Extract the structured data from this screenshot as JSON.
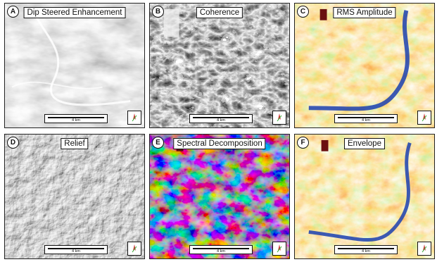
{
  "panels": [
    {
      "letter": "A",
      "title": "Dip Steered Enhancement",
      "scale": "4 km",
      "style": "gray"
    },
    {
      "letter": "B",
      "title": "Coherence",
      "scale": "4 km",
      "style": "coherence"
    },
    {
      "letter": "C",
      "title": "RMS Amplitude",
      "scale": "4 km",
      "style": "heat"
    },
    {
      "letter": "D",
      "title": "Relief",
      "scale": "4 km",
      "style": "relief"
    },
    {
      "letter": "E",
      "title": "Spectral Decomposition",
      "scale": "4 km",
      "style": "rgb"
    },
    {
      "letter": "F",
      "title": "Envelope",
      "scale": "4 km",
      "style": "heat"
    }
  ],
  "colors": {
    "heat_base": "#f2a21a",
    "heat_red": "#e03a12",
    "heat_green": "#8fcf2a",
    "heat_blue": "#1a3fb0",
    "gray_base": "#8a8a8a",
    "rgb_base": "#7d6f8e"
  }
}
